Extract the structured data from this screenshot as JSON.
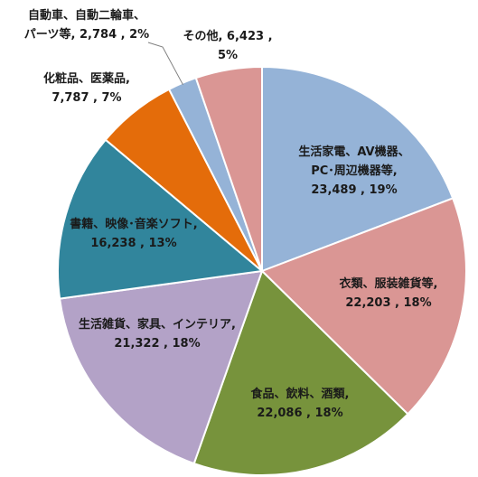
{
  "chart_data": {
    "type": "pie",
    "title": "",
    "total_note": "",
    "slices": [
      {
        "name": "生活家電、AV機器、PC・周辺機器等",
        "label_lines": [
          "生活家電、AV機器、",
          "PC･周辺機器等,",
          "23,489 , 19%"
        ],
        "value": 23489,
        "percent": 19,
        "color": "#95b3d7"
      },
      {
        "name": "衣類、服装雑貨等",
        "label_lines": [
          "衣類、服装雑貨等,",
          "22,203 , 18%"
        ],
        "value": 22203,
        "percent": 18,
        "color": "#da9694"
      },
      {
        "name": "食品、飲料、酒類",
        "label_lines": [
          "食品、飲料、酒類,",
          "22,086 , 18%"
        ],
        "value": 22086,
        "percent": 18,
        "color": "#77933c"
      },
      {
        "name": "生活雑貨、家具、インテリア",
        "label_lines": [
          "生活雑貨、家具、インテリア,",
          "21,322 , 18%"
        ],
        "value": 21322,
        "percent": 18,
        "color": "#b3a2c7"
      },
      {
        "name": "書籍、映像・音楽ソフト",
        "label_lines": [
          "書籍、映像･音楽ソフト,",
          "16,238 , 13%"
        ],
        "value": 16238,
        "percent": 13,
        "color": "#31859c"
      },
      {
        "name": "化粧品、医薬品",
        "label_lines": [
          "化粧品、医薬品,",
          "7,787 , 7%"
        ],
        "value": 7787,
        "percent": 7,
        "color": "#e46c0a"
      },
      {
        "name": "自動車、自動二輪車、パーツ等",
        "label_lines": [
          "自動車、自動二輪車、",
          "パーツ等, 2,784 , 2%"
        ],
        "value": 2784,
        "percent": 2,
        "color": "#95b3d7"
      },
      {
        "name": "その他",
        "label_lines": [
          "その他, 6,423 ,",
          "5%"
        ],
        "value": 6423,
        "percent": 5,
        "color": "#da9694"
      }
    ]
  }
}
